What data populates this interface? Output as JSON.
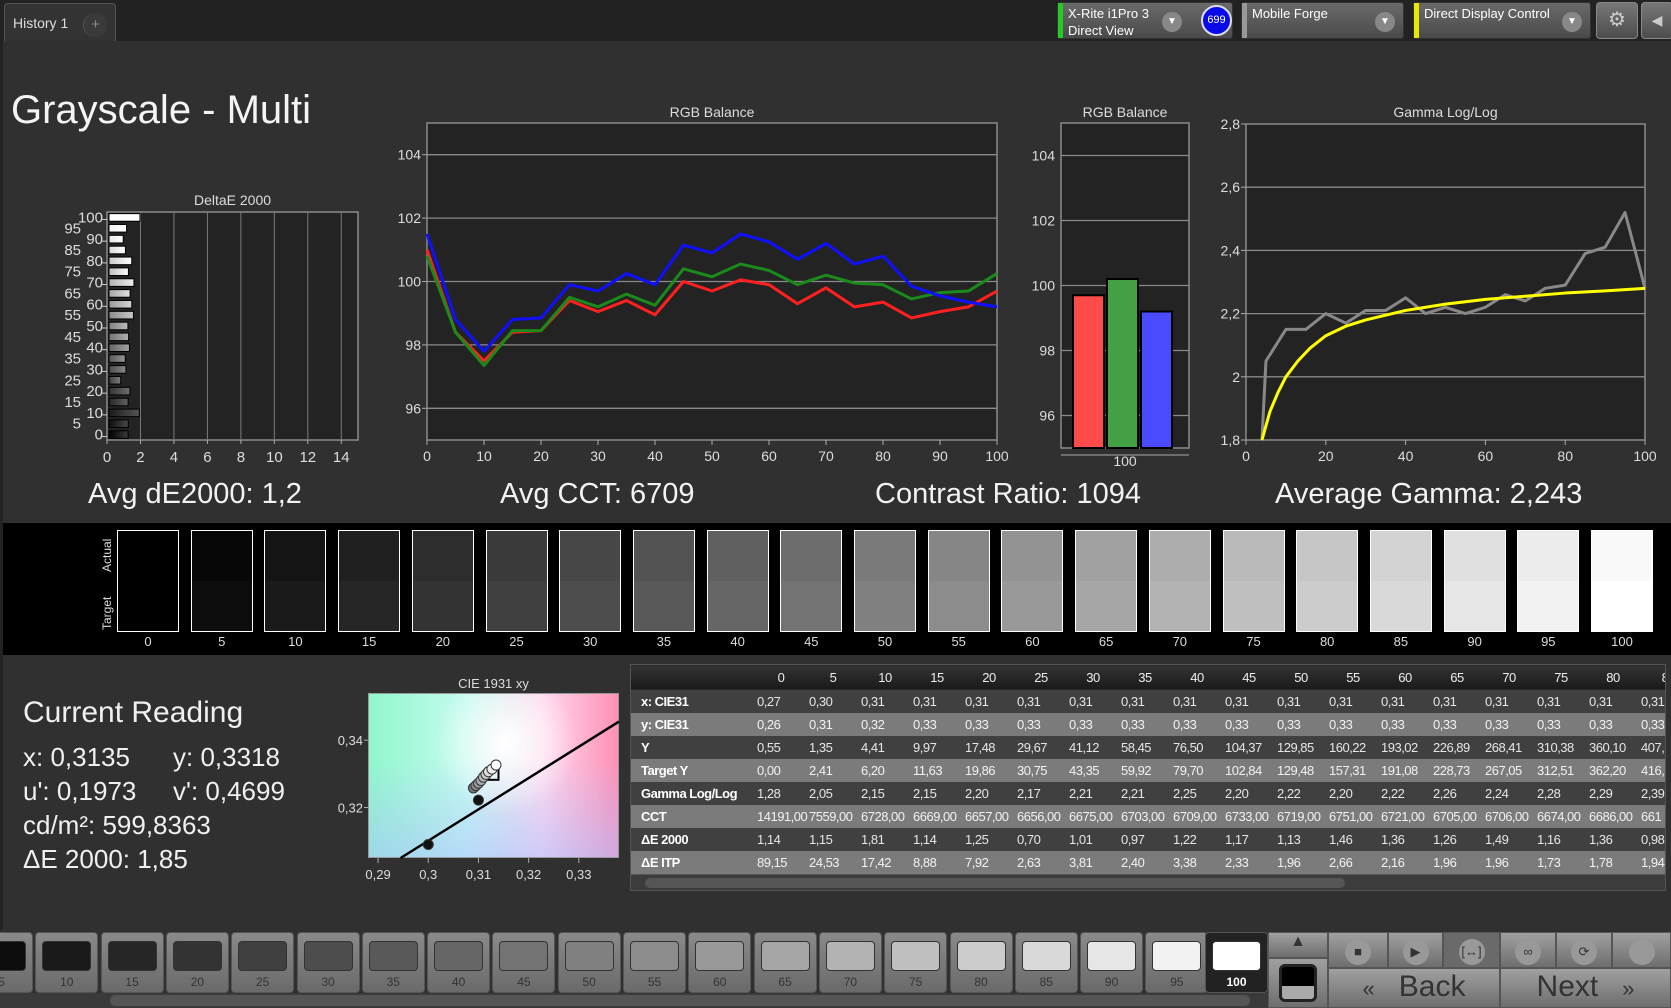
{
  "tabs": {
    "history": "History 1",
    "add": "+"
  },
  "toolbar": {
    "meter": {
      "line1": "X-Rite i1Pro 3",
      "line2": "Direct View",
      "badge": "699",
      "color": "#22cc22"
    },
    "source": {
      "label": "Mobile Forge",
      "color": "#999999"
    },
    "display": {
      "label": "Direct Display Control",
      "color": "#e8e800"
    },
    "settings_icon": "gear-icon",
    "collapse_icon": "triangle-left-icon"
  },
  "page": {
    "title": "Grayscale - Multi"
  },
  "stats": {
    "avg_de": "Avg dE2000: 1,2",
    "avg_cct": "Avg CCT: 6709",
    "contrast": "Contrast Ratio: 1094",
    "gamma": "Average Gamma: 2,243"
  },
  "swatches": {
    "actual_label": "Actual",
    "target_label": "Target",
    "levels": [
      "0",
      "5",
      "10",
      "15",
      "20",
      "25",
      "30",
      "35",
      "40",
      "45",
      "50",
      "55",
      "60",
      "65",
      "70",
      "75",
      "80",
      "85",
      "90",
      "95",
      "100"
    ]
  },
  "reading": {
    "title": "Current Reading",
    "x": "x: 0,3135",
    "y": "y: 0,3318",
    "u": "u': 0,1973",
    "v": "v': 0,4699",
    "lum": "cd/m²: 599,8363",
    "de": "ΔE 2000: 1,85"
  },
  "table": {
    "columns": [
      "0",
      "5",
      "10",
      "15",
      "20",
      "25",
      "30",
      "35",
      "40",
      "45",
      "50",
      "55",
      "60",
      "65",
      "70",
      "75",
      "80",
      "8"
    ],
    "rows": [
      {
        "label": "x: CIE31",
        "values": [
          "0,27",
          "0,30",
          "0,31",
          "0,31",
          "0,31",
          "0,31",
          "0,31",
          "0,31",
          "0,31",
          "0,31",
          "0,31",
          "0,31",
          "0,31",
          "0,31",
          "0,31",
          "0,31",
          "0,31",
          "0,31"
        ]
      },
      {
        "label": "y: CIE31",
        "values": [
          "0,26",
          "0,31",
          "0,32",
          "0,33",
          "0,33",
          "0,33",
          "0,33",
          "0,33",
          "0,33",
          "0,33",
          "0,33",
          "0,33",
          "0,33",
          "0,33",
          "0,33",
          "0,33",
          "0,33",
          "0,33"
        ]
      },
      {
        "label": "Y",
        "values": [
          "0,55",
          "1,35",
          "4,41",
          "9,97",
          "17,48",
          "29,67",
          "41,12",
          "58,45",
          "76,50",
          "104,37",
          "129,85",
          "160,22",
          "193,02",
          "226,89",
          "268,41",
          "310,38",
          "360,10",
          "407,"
        ]
      },
      {
        "label": "Target Y",
        "values": [
          "0,00",
          "2,41",
          "6,20",
          "11,63",
          "19,86",
          "30,75",
          "43,35",
          "59,92",
          "79,70",
          "102,84",
          "129,48",
          "157,31",
          "191,08",
          "228,73",
          "267,05",
          "312,51",
          "362,20",
          "416,"
        ]
      },
      {
        "label": "Gamma Log/Log",
        "values": [
          "1,28",
          "2,05",
          "2,15",
          "2,15",
          "2,20",
          "2,17",
          "2,21",
          "2,21",
          "2,25",
          "2,20",
          "2,22",
          "2,20",
          "2,22",
          "2,26",
          "2,24",
          "2,28",
          "2,29",
          "2,39"
        ]
      },
      {
        "label": "CCT",
        "values": [
          "14191,00",
          "7559,00",
          "6728,00",
          "6669,00",
          "6657,00",
          "6656,00",
          "6675,00",
          "6703,00",
          "6709,00",
          "6733,00",
          "6719,00",
          "6751,00",
          "6721,00",
          "6705,00",
          "6706,00",
          "6674,00",
          "6686,00",
          "661"
        ]
      },
      {
        "label": "ΔE 2000",
        "values": [
          "1,14",
          "1,15",
          "1,81",
          "1,14",
          "1,25",
          "0,70",
          "1,01",
          "0,97",
          "1,22",
          "1,17",
          "1,13",
          "1,46",
          "1,36",
          "1,26",
          "1,49",
          "1,16",
          "1,36",
          "0,98"
        ]
      },
      {
        "label": "ΔE ITP",
        "values": [
          "89,15",
          "24,53",
          "17,42",
          "8,88",
          "7,92",
          "2,63",
          "3,81",
          "2,40",
          "3,38",
          "2,33",
          "1,96",
          "2,66",
          "2,16",
          "1,96",
          "1,96",
          "1,73",
          "1,78",
          "1,94"
        ]
      }
    ]
  },
  "patch_buttons": {
    "items": [
      "5",
      "10",
      "15",
      "20",
      "25",
      "30",
      "35",
      "40",
      "45",
      "50",
      "55",
      "60",
      "65",
      "70",
      "75",
      "80",
      "85",
      "90",
      "95",
      "100"
    ],
    "selected": "100"
  },
  "transport": {
    "back": "Back",
    "next": "Next",
    "back_icon": "«",
    "next_icon": "»",
    "icons": [
      "stop-icon",
      "play-icon",
      "bracket-icon",
      "infinity-icon",
      "refresh-icon",
      "record-icon"
    ]
  },
  "chart_data": [
    {
      "id": "de",
      "type": "bar",
      "orientation": "horizontal",
      "title": "DeltaE 2000",
      "categories": [
        "0",
        "5",
        "10",
        "15",
        "20",
        "25",
        "30",
        "35",
        "40",
        "45",
        "50",
        "55",
        "60",
        "65",
        "70",
        "75",
        "80",
        "85",
        "90",
        "95",
        "100"
      ],
      "values": [
        1.14,
        1.15,
        1.81,
        1.14,
        1.25,
        0.7,
        1.01,
        0.97,
        1.22,
        1.17,
        1.13,
        1.46,
        1.36,
        1.26,
        1.49,
        1.16,
        1.36,
        0.98,
        0.85,
        1.05,
        1.85
      ],
      "xlim": [
        0,
        15
      ],
      "xticks": [
        "0",
        "2",
        "4",
        "6",
        "8",
        "10",
        "12",
        "14"
      ],
      "grid": true
    },
    {
      "id": "rgbline",
      "type": "line",
      "title": "RGB Balance",
      "x": [
        0,
        5,
        10,
        15,
        20,
        25,
        30,
        35,
        40,
        45,
        50,
        55,
        60,
        65,
        70,
        75,
        80,
        85,
        90,
        95,
        100
      ],
      "xlim": [
        0,
        100
      ],
      "ylim": [
        95,
        105
      ],
      "xticks": [
        "0",
        "10",
        "20",
        "30",
        "40",
        "50",
        "60",
        "70",
        "80",
        "90",
        "100"
      ],
      "yticks": [
        "96",
        "98",
        "100",
        "102",
        "104"
      ],
      "grid": true,
      "series": [
        {
          "color": "#ff2020",
          "values": [
            101.0,
            98.4,
            97.5,
            98.4,
            98.45,
            99.4,
            99.05,
            99.4,
            98.95,
            100.0,
            99.7,
            100.05,
            99.9,
            99.3,
            99.8,
            99.2,
            99.35,
            98.85,
            99.05,
            99.2,
            99.7
          ]
        },
        {
          "color": "#1a8a1a",
          "values": [
            100.8,
            98.4,
            97.35,
            98.45,
            98.45,
            99.5,
            99.2,
            99.6,
            99.25,
            100.4,
            100.15,
            100.55,
            100.35,
            99.9,
            100.2,
            99.95,
            99.9,
            99.45,
            99.65,
            99.7,
            100.25
          ]
        },
        {
          "color": "#1010ff",
          "values": [
            101.5,
            98.8,
            97.8,
            98.8,
            98.85,
            99.9,
            99.7,
            100.25,
            99.9,
            101.15,
            100.9,
            101.5,
            101.25,
            100.7,
            101.2,
            100.55,
            100.8,
            99.85,
            99.55,
            99.35,
            99.2
          ]
        }
      ]
    },
    {
      "id": "rgbbar",
      "type": "bar",
      "title": "RGB Balance",
      "categories": [
        "100"
      ],
      "ylim": [
        95,
        105
      ],
      "yticks": [
        "96",
        "98",
        "100",
        "102",
        "104"
      ],
      "series": [
        {
          "color": "#ff4a4a",
          "values": [
            99.7
          ]
        },
        {
          "color": "#44a044",
          "values": [
            100.2
          ]
        },
        {
          "color": "#4a4aff",
          "values": [
            99.2
          ]
        }
      ]
    },
    {
      "id": "gamma",
      "type": "line",
      "title": "Gamma Log/Log",
      "xlim": [
        0,
        100
      ],
      "ylim": [
        1.8,
        2.8
      ],
      "xticks": [
        "0",
        "20",
        "40",
        "60",
        "80",
        "100"
      ],
      "yticks": [
        "1,8",
        "2",
        "2,2",
        "2,4",
        "2,6",
        "2,8"
      ],
      "grid": true,
      "series": [
        {
          "color": "#888888",
          "x": [
            4,
            5,
            10,
            15,
            20,
            25,
            30,
            35,
            40,
            45,
            50,
            55,
            60,
            65,
            70,
            75,
            80,
            85,
            90,
            95,
            100
          ],
          "values": [
            1.8,
            2.05,
            2.15,
            2.15,
            2.2,
            2.17,
            2.21,
            2.21,
            2.25,
            2.2,
            2.22,
            2.2,
            2.22,
            2.26,
            2.24,
            2.28,
            2.29,
            2.39,
            2.41,
            2.52,
            2.28
          ]
        },
        {
          "color": "#ffff00",
          "x": [
            4,
            6,
            8,
            10,
            13,
            16,
            20,
            25,
            30,
            40,
            50,
            60,
            70,
            80,
            90,
            100
          ],
          "values": [
            1.8,
            1.89,
            1.95,
            2.0,
            2.05,
            2.09,
            2.13,
            2.16,
            2.18,
            2.21,
            2.23,
            2.245,
            2.255,
            2.265,
            2.272,
            2.28
          ]
        }
      ]
    },
    {
      "id": "cie",
      "type": "scatter",
      "title": "CIE 1931 xy",
      "xlim": [
        0.288,
        0.338
      ],
      "ylim": [
        0.305,
        0.354
      ],
      "xticks": [
        "0,29",
        "0,3",
        "0,31",
        "0,32",
        "0,33"
      ],
      "yticks": [
        "0,32",
        "0,34"
      ],
      "planckian": [
        [
          0.2945,
          0.305
        ],
        [
          0.338,
          0.3455
        ]
      ],
      "points": [
        [
          0.3,
          0.309,
          "#111111"
        ],
        [
          0.31,
          0.3222,
          "#111111"
        ],
        [
          0.309,
          0.3258,
          "#777777"
        ],
        [
          0.3095,
          0.3265,
          "#8a8a8a"
        ],
        [
          0.31,
          0.3272,
          "#9a9a9a"
        ],
        [
          0.3105,
          0.328,
          "#aaaaaa"
        ],
        [
          0.311,
          0.329,
          "#bbbbbb"
        ],
        [
          0.3115,
          0.3298,
          "#cccccc"
        ],
        [
          0.312,
          0.3306,
          "#dddddd"
        ],
        [
          0.3127,
          0.3314,
          "#eeeeee"
        ],
        [
          0.3135,
          0.3326,
          "#ffffff"
        ]
      ],
      "current": [
        0.3128,
        0.33
      ]
    }
  ]
}
